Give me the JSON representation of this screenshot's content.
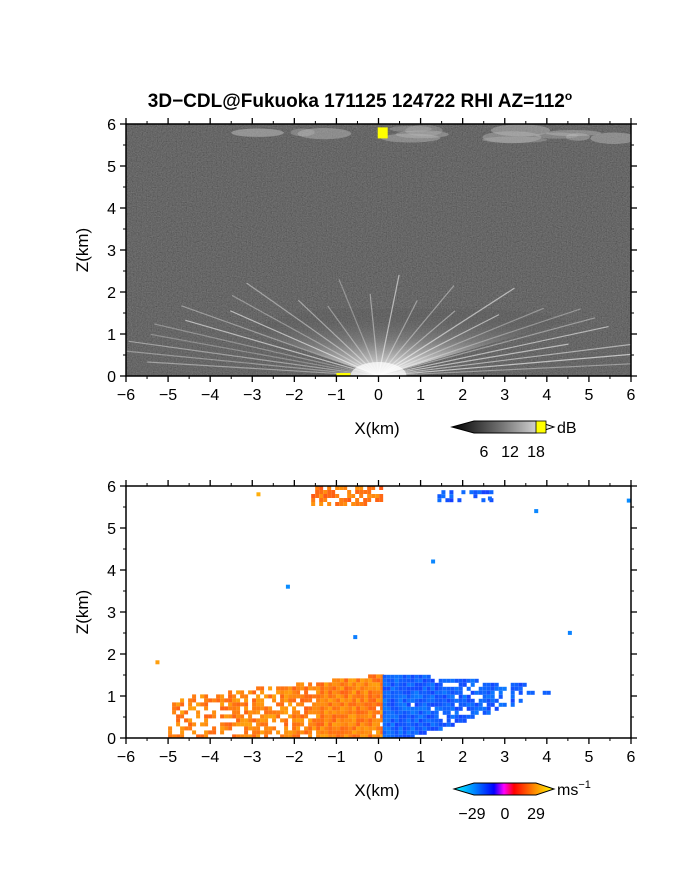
{
  "chart_data": [
    {
      "type": "heatmap",
      "title": "3D−CDL@Fukuoka 171125 124722 RHI AZ=112",
      "title_superscript": "o",
      "xlabel": "X(km)",
      "ylabel": "Z(km)",
      "xlim": [
        -6,
        6
      ],
      "ylim": [
        0,
        6
      ],
      "xticks": [
        "−6",
        "−5",
        "−4",
        "−3",
        "−2",
        "−1",
        "0",
        "1",
        "2",
        "3",
        "4",
        "5",
        "6"
      ],
      "yticks": [
        "0",
        "1",
        "2",
        "3",
        "4",
        "5",
        "6"
      ],
      "colorbar": {
        "label": "dB",
        "ticks": [
          "6",
          "12",
          "18"
        ],
        "range": [
          0,
          20
        ],
        "colormap": "grayscale"
      },
      "features": [
        {
          "name": "backscatter fan",
          "x": [
            -3,
            4.5
          ],
          "z": [
            0,
            1.6
          ]
        },
        {
          "name": "upper layer",
          "x": [
            -3,
            6
          ],
          "z": [
            5.6,
            5.9
          ]
        },
        {
          "name": "yellow peak",
          "x": 0.1,
          "z": 5.8,
          "value_db": 20
        }
      ],
      "colors": {
        "low": "#000000",
        "mid": "#808080",
        "high": "#ffffff",
        "peak": "#ffff00"
      }
    },
    {
      "type": "heatmap",
      "title": "",
      "xlabel": "X(km)",
      "ylabel": "Z(km)",
      "xlim": [
        -6,
        6
      ],
      "ylim": [
        0,
        6
      ],
      "xticks": [
        "−6",
        "−5",
        "−4",
        "−3",
        "−2",
        "−1",
        "0",
        "1",
        "2",
        "3",
        "4",
        "5",
        "6"
      ],
      "yticks": [
        "0",
        "1",
        "2",
        "3",
        "4",
        "5",
        "6"
      ],
      "colorbar": {
        "label": "ms",
        "label_superscript": "−1",
        "ticks": [
          "−29",
          "0",
          "29"
        ],
        "range": [
          -29,
          29
        ],
        "colormap": "cyan-blue-red-yellow"
      },
      "features": [
        {
          "name": "receding flow",
          "x": [
            -5,
            0.1
          ],
          "z": [
            0,
            1.8
          ],
          "velocity": 20
        },
        {
          "name": "approaching flow",
          "x": [
            0.1,
            4.5
          ],
          "z": [
            0,
            1.6
          ],
          "velocity": -20
        },
        {
          "name": "upper layer receding",
          "x": [
            -1.6,
            0.1
          ],
          "z": [
            5.6,
            6
          ],
          "velocity": 18
        },
        {
          "name": "upper layer approaching",
          "x": [
            1.4,
            2.7
          ],
          "z": [
            5.65,
            5.9
          ],
          "velocity": -18
        }
      ],
      "colors": {
        "cyan": "#00ffff",
        "blue": "#0000ff",
        "red": "#ff2020",
        "yellow": "#ffff00",
        "orange": "#ff8000"
      }
    }
  ]
}
